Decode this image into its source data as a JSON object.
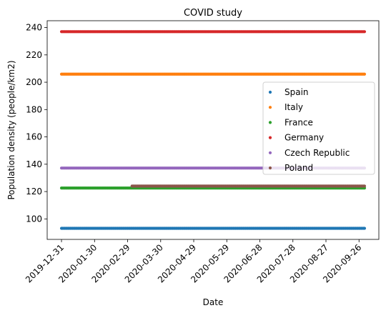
{
  "chart_data": {
    "type": "scatter",
    "title": "COVID study",
    "xlabel": "Date",
    "ylabel": "Population density (people/km2)",
    "x_range": [
      "2019-12-31",
      "2020-10-01"
    ],
    "xlim": [
      "2019-12-18",
      "2020-10-14"
    ],
    "ylim": [
      85,
      245
    ],
    "x_ticks": [
      "2019-12-31",
      "2020-01-30",
      "2020-02-29",
      "2020-03-30",
      "2020-04-29",
      "2020-05-29",
      "2020-06-28",
      "2020-07-28",
      "2020-08-27",
      "2020-09-26"
    ],
    "y_ticks": [
      100,
      120,
      140,
      160,
      180,
      200,
      220,
      240
    ],
    "grid": false,
    "legend_position": "right",
    "series": [
      {
        "name": "Spain",
        "color": "#1f77b4",
        "y": 93.1,
        "x_start": "2019-12-31",
        "x_end": "2020-10-01"
      },
      {
        "name": "Italy",
        "color": "#ff7f0e",
        "y": 205.9,
        "x_start": "2019-12-31",
        "x_end": "2020-10-01"
      },
      {
        "name": "France",
        "color": "#2ca02c",
        "y": 122.6,
        "x_start": "2019-12-31",
        "x_end": "2020-10-01"
      },
      {
        "name": "Germany",
        "color": "#d62728",
        "y": 237.0,
        "x_start": "2019-12-31",
        "x_end": "2020-10-01"
      },
      {
        "name": "Czech Republic",
        "color": "#9467bd",
        "y": 137.2,
        "x_start": "2019-12-31",
        "x_end": "2020-10-01"
      },
      {
        "name": "Poland",
        "color": "#8c564b",
        "y": 124.0,
        "x_start": "2020-03-04",
        "x_end": "2020-10-01"
      }
    ]
  }
}
